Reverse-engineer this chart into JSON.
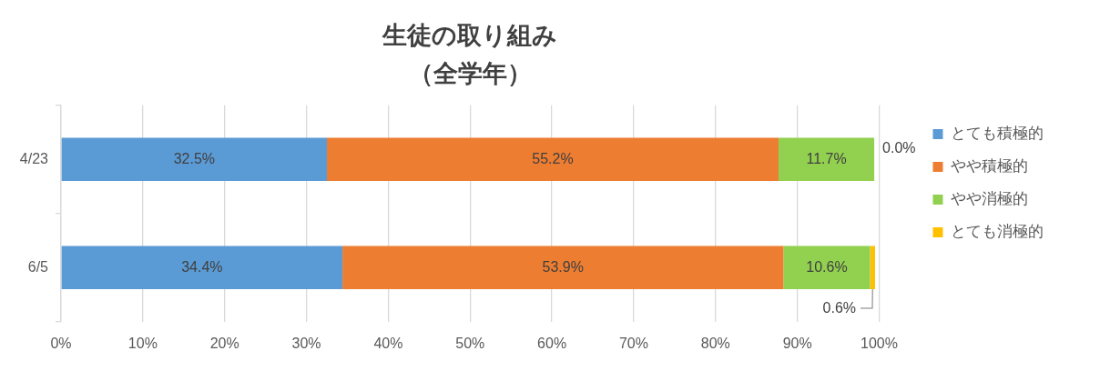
{
  "chart_data": {
    "type": "bar",
    "orientation": "horizontal",
    "stacked": true,
    "title": "生徒の取り組み",
    "subtitle": "（全学年）",
    "categories": [
      "4/23",
      "6/5"
    ],
    "series": [
      {
        "name": "とても積極的",
        "color": "#5b9bd5",
        "values": [
          32.5,
          34.4
        ],
        "value_labels": [
          "32.5%",
          "34.4%"
        ]
      },
      {
        "name": "やや積極的",
        "color": "#ed7d31",
        "values": [
          55.2,
          53.9
        ],
        "value_labels": [
          "55.2%",
          "53.9%"
        ]
      },
      {
        "name": "やや消極的",
        "color": "#92d050",
        "values": [
          11.7,
          10.6
        ],
        "value_labels": [
          "11.7%",
          "10.6%"
        ]
      },
      {
        "name": "とても消極的",
        "color": "#ffc000",
        "values": [
          0.0,
          0.6
        ],
        "value_labels": [
          "0.0%",
          "0.6%"
        ]
      }
    ],
    "xlim": [
      0,
      100
    ],
    "xticks": [
      {
        "value": 0,
        "label": "0%"
      },
      {
        "value": 10,
        "label": "10%"
      },
      {
        "value": 20,
        "label": "20%"
      },
      {
        "value": 30,
        "label": "30%"
      },
      {
        "value": 40,
        "label": "40%"
      },
      {
        "value": 50,
        "label": "50%"
      },
      {
        "value": 60,
        "label": "60%"
      },
      {
        "value": 70,
        "label": "70%"
      },
      {
        "value": 80,
        "label": "80%"
      },
      {
        "value": 90,
        "label": "90%"
      },
      {
        "value": 100,
        "label": "100%"
      }
    ],
    "grid": "x",
    "legend": "right"
  }
}
